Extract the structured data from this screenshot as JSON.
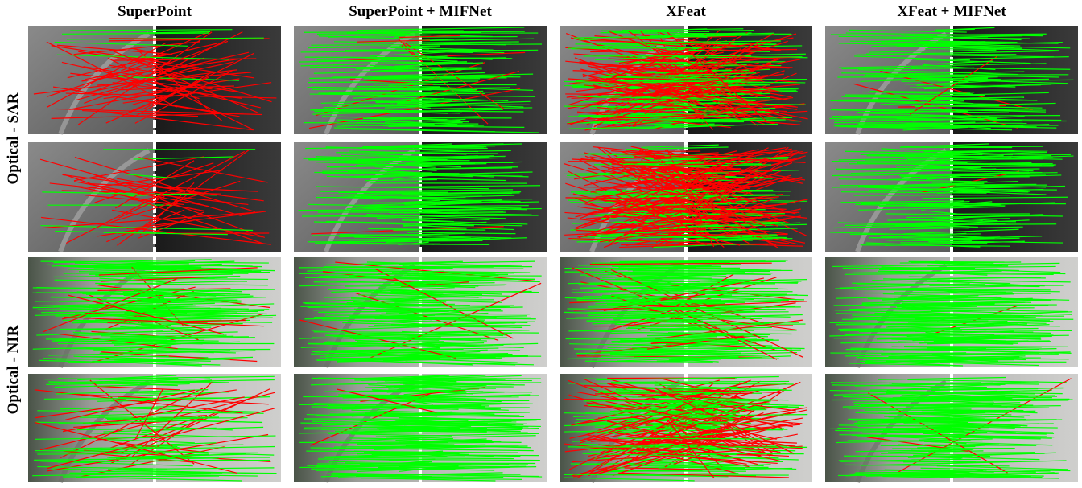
{
  "columns": [
    "SuperPoint",
    "SuperPoint + MIFNet",
    "XFeat",
    "XFeat +  MIFNet"
  ],
  "rows": [
    "Optical - SAR",
    "Optical - NIR"
  ]
}
